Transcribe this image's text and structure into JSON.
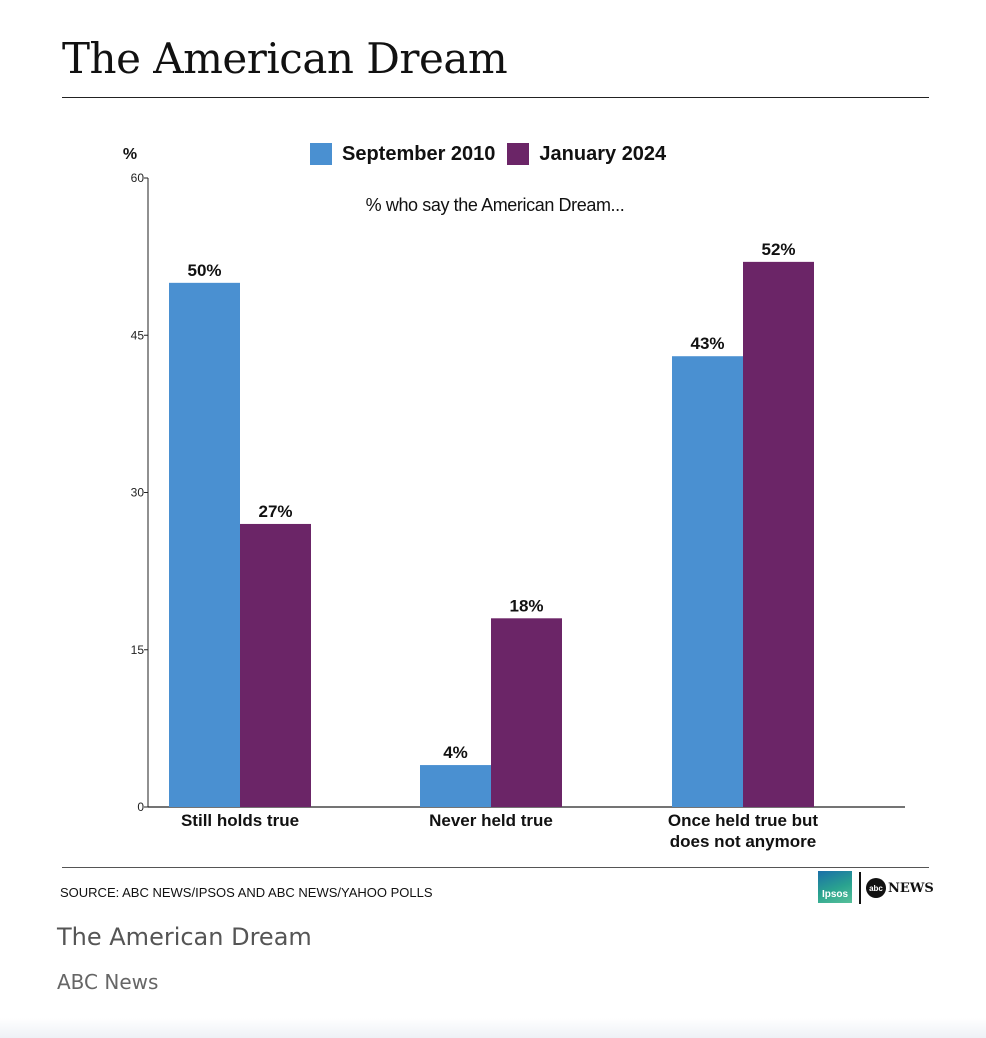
{
  "chart_data": {
    "type": "bar",
    "title": "The American Dream",
    "subtitle": "% who say the American Dream...",
    "ylabel": "%",
    "xlabel": "",
    "ylim": [
      0,
      60
    ],
    "yticks": [
      0,
      15,
      30,
      45,
      60
    ],
    "grid": false,
    "legend_position": "top",
    "categories": [
      "Still holds true",
      "Never held true",
      "Once held true but does not anymore"
    ],
    "series": [
      {
        "name": "September 2010",
        "color": "#4a90d1",
        "values": [
          50,
          4,
          43
        ]
      },
      {
        "name": "January 2024",
        "color": "#6b2567",
        "values": [
          27,
          18,
          52
        ]
      }
    ],
    "data_label_suffix": "%"
  },
  "source": "SOURCE: ABC NEWS/IPSOS AND ABC NEWS/YAHOO POLLS",
  "logos": {
    "ipsos": "Ipsos",
    "abc_mark": "abc",
    "abc_word": "NEWS"
  },
  "caption": {
    "title": "The American Dream",
    "source": "ABC News"
  }
}
